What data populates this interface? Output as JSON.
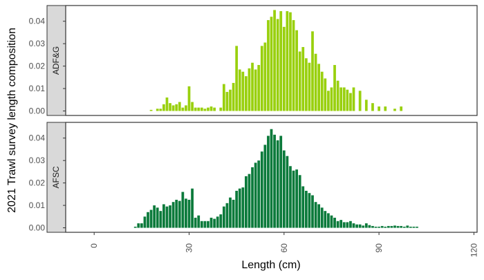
{
  "chart_data": {
    "type": "bar",
    "xlabel": "Length (cm)",
    "ylabel": "2021 Trawl survey length composition",
    "xlim": [
      -9,
      121
    ],
    "xticks": [
      0,
      30,
      60,
      90,
      120
    ],
    "ylim": [
      -0.002,
      0.047
    ],
    "yticks": [
      0.0,
      0.01,
      0.02,
      0.03,
      0.04
    ],
    "ytick_labels": [
      "0.00",
      "0.01",
      "0.02",
      "0.03",
      "0.04"
    ],
    "grid": false,
    "facets": [
      {
        "label": "ADF&G",
        "color": "#99d00e",
        "x": [
          18,
          20,
          21,
          22,
          23,
          24,
          25,
          26,
          27,
          28,
          29,
          30,
          31,
          32,
          33,
          34,
          35,
          36,
          37,
          38,
          40,
          41,
          42,
          43,
          44,
          45,
          46,
          47,
          48,
          49,
          50,
          51,
          52,
          53,
          54,
          55,
          56,
          57,
          58,
          59,
          60,
          61,
          62,
          63,
          64,
          65,
          66,
          67,
          68,
          69,
          70,
          71,
          72,
          73,
          74,
          75,
          76,
          77,
          78,
          79,
          80,
          81,
          82,
          84,
          86,
          88,
          90,
          92,
          95,
          97
        ],
        "values": [
          0.0005,
          0.001,
          0.001,
          0.003,
          0.006,
          0.0035,
          0.0025,
          0.003,
          0.004,
          0.0015,
          0.0025,
          0.011,
          0.004,
          0.0015,
          0.0015,
          0.0015,
          0.001,
          0.0015,
          0.002,
          0.0015,
          0.0015,
          0.012,
          0.0085,
          0.0095,
          0.0125,
          0.029,
          0.0185,
          0.0175,
          0.0155,
          0.019,
          0.0215,
          0.0185,
          0.0205,
          0.029,
          0.0305,
          0.0405,
          0.042,
          0.045,
          0.041,
          0.0445,
          0.0375,
          0.0445,
          0.044,
          0.0405,
          0.036,
          0.0265,
          0.0285,
          0.0235,
          0.0215,
          0.0355,
          0.0255,
          0.021,
          0.0175,
          0.0145,
          0.009,
          0.0105,
          0.0205,
          0.0135,
          0.0105,
          0.0105,
          0.0095,
          0.008,
          0.0105,
          0.009,
          0.005,
          0.0035,
          0.002,
          0.002,
          0.001,
          0.002
        ]
      },
      {
        "label": "AFSC",
        "color": "#0b7a3b",
        "x": [
          13,
          14,
          15,
          16,
          17,
          18,
          19,
          20,
          21,
          22,
          23,
          24,
          25,
          26,
          27,
          28,
          29,
          30,
          31,
          32,
          33,
          34,
          35,
          36,
          37,
          38,
          39,
          40,
          41,
          42,
          43,
          44,
          45,
          46,
          47,
          48,
          49,
          50,
          51,
          52,
          53,
          54,
          55,
          56,
          57,
          58,
          59,
          60,
          61,
          62,
          63,
          64,
          65,
          66,
          67,
          68,
          69,
          70,
          71,
          72,
          73,
          74,
          75,
          76,
          77,
          78,
          79,
          80,
          81,
          82,
          83,
          84,
          85,
          86,
          87,
          88,
          89,
          90,
          91,
          92,
          93,
          94,
          95,
          96,
          97,
          98,
          99,
          100,
          101,
          102
        ],
        "values": [
          0.0005,
          0.002,
          0.002,
          0.005,
          0.007,
          0.008,
          0.01,
          0.009,
          0.0075,
          0.0105,
          0.0095,
          0.01,
          0.0115,
          0.0125,
          0.012,
          0.016,
          0.013,
          0.0125,
          0.0175,
          0.0045,
          0.0055,
          0.003,
          0.003,
          0.003,
          0.0045,
          0.004,
          0.005,
          0.006,
          0.0095,
          0.011,
          0.0135,
          0.0125,
          0.0165,
          0.0175,
          0.018,
          0.023,
          0.024,
          0.027,
          0.029,
          0.03,
          0.034,
          0.037,
          0.041,
          0.044,
          0.0415,
          0.039,
          0.041,
          0.0345,
          0.032,
          0.0275,
          0.0255,
          0.026,
          0.0235,
          0.0185,
          0.0165,
          0.0155,
          0.0145,
          0.0115,
          0.0105,
          0.009,
          0.0075,
          0.0065,
          0.0055,
          0.0045,
          0.003,
          0.0035,
          0.0025,
          0.0025,
          0.003,
          0.002,
          0.0015,
          0.0015,
          0.001,
          0.002,
          0.0012,
          0.0008,
          0.0005,
          0.0005,
          0.0008,
          0.0005,
          0.0008,
          0.0008,
          0.001,
          0.0008,
          0.0008,
          0.0005,
          0.001,
          0.0005,
          0.0005,
          0.0005
        ]
      }
    ]
  }
}
